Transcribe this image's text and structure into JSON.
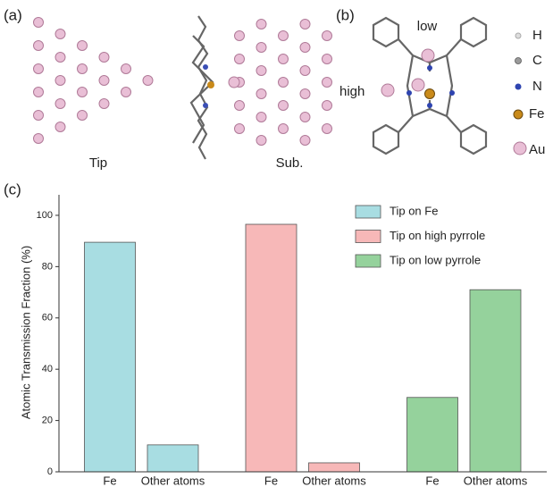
{
  "figure": {
    "panel_a": {
      "label": "(a)",
      "tip": "Tip",
      "substrate": "Sub."
    },
    "panel_b": {
      "label": "(b)",
      "low": "low",
      "high": "high",
      "legend": [
        "H",
        "C",
        "N",
        "Fe",
        "Au"
      ]
    }
  },
  "chart_data": {
    "type": "bar",
    "panel_label": "(c)",
    "y_label": "Atomic Transmission Fraction (%)",
    "categories": [
      "Fe",
      "Other atoms",
      "Fe",
      "Other atoms",
      "Fe",
      "Other atoms"
    ],
    "series": [
      {
        "name": "Tip on Fe",
        "color": "#a8dde2",
        "values": [
          89.5,
          10.5,
          null,
          null,
          null,
          null
        ]
      },
      {
        "name": "Tip on high pyrrole",
        "color": "#f7b8b8",
        "values": [
          null,
          null,
          96.5,
          3.5,
          null,
          null
        ]
      },
      {
        "name": "Tip on low pyrrole",
        "color": "#95d29c",
        "values": [
          null,
          null,
          null,
          null,
          29,
          71
        ]
      }
    ],
    "ylim": [
      0,
      108
    ],
    "yticks": [
      0,
      20,
      40,
      60,
      80,
      100
    ],
    "legend": "upper right"
  }
}
